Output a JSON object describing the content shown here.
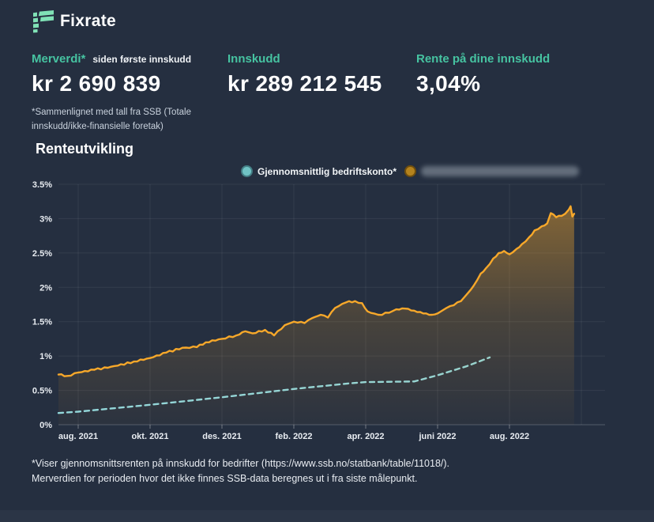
{
  "brand": {
    "name": "Fixrate",
    "mark_color": "#80e2b6"
  },
  "colors": {
    "background": "#252f40",
    "accent": "#46c3a1",
    "orange_line": "#f7a82a",
    "teal_dash_line": "#8ed9e2"
  },
  "stats": [
    {
      "label": "Merverdi*",
      "sublabel": "siden første innskudd",
      "value": "kr 2 690 839",
      "footnote": "*Sammenlignet med tall fra SSB (Totale innskudd/ikke-finansielle foretak)"
    },
    {
      "label": "Innskudd",
      "value": "kr 289 212 545"
    },
    {
      "label": "Rente på dine innskudd",
      "value": "3,04%"
    }
  ],
  "section": {
    "title": "Renteutvikling"
  },
  "legend": {
    "items": [
      {
        "label": "Gjennomsnittlig bedriftskonto*",
        "dot_color": "#70c3c5",
        "redacted": false
      },
      {
        "label": "",
        "dot_color": "#b5831d",
        "redacted": true
      }
    ]
  },
  "footer": {
    "line1": "*Viser gjennomsnittsrenten på innskudd for bedrifter (https://www.ssb.no/statbank/table/11018/).",
    "line2": "Merverdien for perioden hvor det ikke finnes SSB-data beregnes ut i fra siste målepunkt."
  },
  "chart_data": {
    "type": "line",
    "title": "Renteutvikling",
    "x_unit": "months since aug. 2021",
    "x_tick_labels": [
      "aug. 2021",
      "okt. 2021",
      "des. 2021",
      "feb. 2022",
      "apr. 2022",
      "juni 2022",
      "aug. 2022"
    ],
    "x_tick_positions": [
      0,
      2,
      4,
      6,
      8,
      10,
      12
    ],
    "grid_month_positions": [
      0,
      2,
      4,
      6,
      8,
      10,
      12,
      14
    ],
    "y_tick_labels": [
      "0%",
      "0.5%",
      "1%",
      "1.5%",
      "2%",
      "2.5%",
      "3%",
      "3.5%"
    ],
    "ylim": [
      0,
      3.5
    ],
    "grid": true,
    "legend_position": "top-right",
    "series": [
      {
        "name": "Gjennomsnittlig bedriftskonto*",
        "color": "#8ed9e2",
        "style": "dashed",
        "area": false,
        "points": [
          [
            -0.55,
            0.17
          ],
          [
            0,
            0.19
          ],
          [
            2,
            0.29
          ],
          [
            4,
            0.4
          ],
          [
            6,
            0.52
          ],
          [
            7.5,
            0.6
          ],
          [
            8,
            0.62
          ],
          [
            9.35,
            0.63
          ],
          [
            10,
            0.72
          ],
          [
            10.8,
            0.85
          ],
          [
            11.45,
            0.98
          ]
        ]
      },
      {
        "name": "(redacted bank account)",
        "color": "#f7a82a",
        "style": "solid",
        "area": true,
        "points": [
          [
            -0.55,
            0.73
          ],
          [
            -0.3,
            0.71
          ],
          [
            0,
            0.76
          ],
          [
            0.45,
            0.8
          ],
          [
            1.1,
            0.86
          ],
          [
            1.55,
            0.92
          ],
          [
            2,
            0.97
          ],
          [
            2.45,
            1.05
          ],
          [
            2.9,
            1.12
          ],
          [
            3.3,
            1.13
          ],
          [
            3.55,
            1.2
          ],
          [
            4,
            1.25
          ],
          [
            4.4,
            1.3
          ],
          [
            4.65,
            1.36
          ],
          [
            4.85,
            1.33
          ],
          [
            5.2,
            1.38
          ],
          [
            5.45,
            1.3
          ],
          [
            5.75,
            1.45
          ],
          [
            6,
            1.5
          ],
          [
            6.3,
            1.48
          ],
          [
            6.5,
            1.55
          ],
          [
            6.75,
            1.6
          ],
          [
            6.95,
            1.56
          ],
          [
            7.15,
            1.7
          ],
          [
            7.45,
            1.78
          ],
          [
            7.7,
            1.8
          ],
          [
            7.9,
            1.77
          ],
          [
            8.05,
            1.65
          ],
          [
            8.35,
            1.6
          ],
          [
            8.65,
            1.63
          ],
          [
            8.85,
            1.68
          ],
          [
            9.1,
            1.69
          ],
          [
            9.35,
            1.66
          ],
          [
            9.6,
            1.62
          ],
          [
            9.85,
            1.6
          ],
          [
            10,
            1.62
          ],
          [
            10.25,
            1.7
          ],
          [
            10.45,
            1.74
          ],
          [
            10.65,
            1.8
          ],
          [
            10.85,
            1.92
          ],
          [
            11,
            2.02
          ],
          [
            11.2,
            2.2
          ],
          [
            11.35,
            2.28
          ],
          [
            11.55,
            2.42
          ],
          [
            11.7,
            2.5
          ],
          [
            11.85,
            2.53
          ],
          [
            12,
            2.48
          ],
          [
            12.2,
            2.56
          ],
          [
            12.35,
            2.63
          ],
          [
            12.55,
            2.73
          ],
          [
            12.7,
            2.83
          ],
          [
            12.9,
            2.89
          ],
          [
            13.05,
            2.93
          ],
          [
            13.15,
            3.08
          ],
          [
            13.3,
            3.02
          ],
          [
            13.45,
            3.04
          ],
          [
            13.55,
            3.07
          ],
          [
            13.65,
            3.13
          ],
          [
            13.7,
            3.18
          ],
          [
            13.75,
            3.03
          ],
          [
            13.8,
            3.07
          ]
        ]
      }
    ]
  }
}
